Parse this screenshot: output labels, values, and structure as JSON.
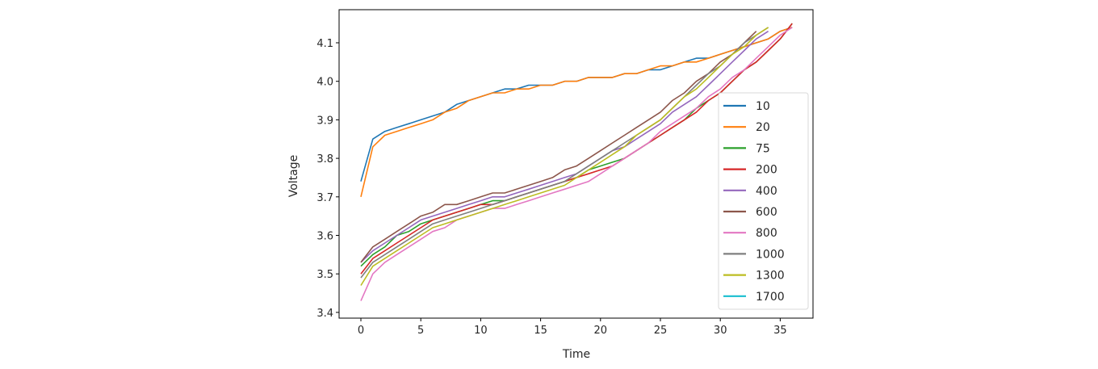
{
  "chart_data": {
    "type": "line",
    "title": "",
    "xlabel": "Time",
    "ylabel": "Voltage",
    "xlim": [
      -1.8,
      37.8
    ],
    "ylim": [
      3.39,
      4.18
    ],
    "xticks": [
      0,
      5,
      10,
      15,
      20,
      25,
      30,
      35
    ],
    "yticks": [
      3.4,
      3.5,
      3.6,
      3.7,
      3.8,
      3.9,
      4.0,
      4.1
    ],
    "ytick_labels": [
      "3.4",
      "3.5",
      "3.6",
      "3.7",
      "3.8",
      "3.9",
      "4.0",
      "4.1"
    ],
    "grid": false,
    "legend_position": "lower right",
    "series": [
      {
        "name": "10",
        "color": "#1f77b4",
        "x": [
          0,
          1,
          2,
          3,
          4,
          5,
          6,
          7,
          8,
          9,
          10,
          11,
          12,
          13,
          14,
          15,
          16,
          17,
          18,
          19,
          20,
          21,
          22,
          23,
          24,
          25,
          26,
          27,
          28,
          29,
          30,
          31,
          32,
          33,
          34,
          35,
          36
        ],
        "values": [
          3.74,
          3.85,
          3.87,
          3.88,
          3.89,
          3.9,
          3.91,
          3.92,
          3.94,
          3.95,
          3.96,
          3.97,
          3.98,
          3.98,
          3.99,
          3.99,
          3.99,
          4.0,
          4.0,
          4.01,
          4.01,
          4.01,
          4.02,
          4.02,
          4.03,
          4.03,
          4.04,
          4.05,
          4.06,
          4.06,
          4.07,
          4.08,
          4.09,
          4.1,
          4.11,
          4.13,
          4.14
        ]
      },
      {
        "name": "20",
        "color": "#ff7f0e",
        "x": [
          0,
          1,
          2,
          3,
          4,
          5,
          6,
          7,
          8,
          9,
          10,
          11,
          12,
          13,
          14,
          15,
          16,
          17,
          18,
          19,
          20,
          21,
          22,
          23,
          24,
          25,
          26,
          27,
          28,
          29,
          30,
          31,
          32,
          33,
          34,
          35,
          36
        ],
        "values": [
          3.7,
          3.83,
          3.86,
          3.87,
          3.88,
          3.89,
          3.9,
          3.92,
          3.93,
          3.95,
          3.96,
          3.97,
          3.97,
          3.98,
          3.98,
          3.99,
          3.99,
          4.0,
          4.0,
          4.01,
          4.01,
          4.01,
          4.02,
          4.02,
          4.03,
          4.04,
          4.04,
          4.05,
          4.05,
          4.06,
          4.07,
          4.08,
          4.09,
          4.1,
          4.11,
          4.13,
          4.14
        ]
      },
      {
        "name": "75",
        "color": "#2ca02c",
        "x": [
          0,
          1,
          2,
          3,
          4,
          5,
          6,
          7,
          8,
          9,
          10,
          11,
          12,
          13,
          14,
          15,
          16,
          17,
          18,
          19,
          20,
          21,
          22,
          23,
          24,
          25,
          26,
          27,
          28,
          29,
          30,
          31,
          32,
          33,
          34,
          35,
          36
        ],
        "values": [
          3.52,
          3.55,
          3.57,
          3.6,
          3.61,
          3.63,
          3.64,
          3.65,
          3.66,
          3.67,
          3.68,
          3.69,
          3.69,
          3.7,
          3.71,
          3.72,
          3.73,
          3.74,
          3.75,
          3.77,
          3.78,
          3.79,
          3.8,
          3.82,
          3.84,
          3.86,
          3.88,
          3.9,
          3.93,
          3.95,
          3.97,
          4.0,
          4.03,
          4.05,
          4.08,
          4.11,
          4.15
        ]
      },
      {
        "name": "200",
        "color": "#d62728",
        "x": [
          0,
          1,
          2,
          3,
          4,
          5,
          6,
          7,
          8,
          9,
          10,
          11,
          12,
          13,
          14,
          15,
          16,
          17,
          18,
          19,
          20,
          21,
          22,
          23,
          24,
          25,
          26,
          27,
          28,
          29,
          30,
          31,
          32,
          33,
          34,
          35,
          36
        ],
        "values": [
          3.5,
          3.54,
          3.56,
          3.58,
          3.6,
          3.62,
          3.64,
          3.65,
          3.66,
          3.67,
          3.68,
          3.68,
          3.69,
          3.7,
          3.71,
          3.72,
          3.73,
          3.74,
          3.75,
          3.76,
          3.77,
          3.78,
          3.8,
          3.82,
          3.84,
          3.86,
          3.88,
          3.9,
          3.92,
          3.95,
          3.97,
          4.0,
          4.03,
          4.05,
          4.08,
          4.11,
          4.15
        ]
      },
      {
        "name": "400",
        "color": "#9467bd",
        "x": [
          0,
          1,
          2,
          3,
          4,
          5,
          6,
          7,
          8,
          9,
          10,
          11,
          12,
          13,
          14,
          15,
          16,
          17,
          18,
          19,
          20,
          21,
          22,
          23,
          24,
          25,
          26,
          27,
          28,
          29,
          30,
          31,
          32,
          33,
          34
        ],
        "values": [
          3.53,
          3.56,
          3.58,
          3.6,
          3.62,
          3.64,
          3.65,
          3.66,
          3.67,
          3.68,
          3.69,
          3.7,
          3.7,
          3.71,
          3.72,
          3.73,
          3.74,
          3.75,
          3.76,
          3.78,
          3.8,
          3.82,
          3.83,
          3.85,
          3.87,
          3.89,
          3.92,
          3.94,
          3.96,
          3.99,
          4.02,
          4.05,
          4.08,
          4.11,
          4.13
        ]
      },
      {
        "name": "600",
        "color": "#8c564b",
        "x": [
          0,
          1,
          2,
          3,
          4,
          5,
          6,
          7,
          8,
          9,
          10,
          11,
          12,
          13,
          14,
          15,
          16,
          17,
          18,
          19,
          20,
          21,
          22,
          23,
          24,
          25,
          26,
          27,
          28,
          29,
          30,
          31,
          32,
          33
        ],
        "values": [
          3.53,
          3.57,
          3.59,
          3.61,
          3.63,
          3.65,
          3.66,
          3.68,
          3.68,
          3.69,
          3.7,
          3.71,
          3.71,
          3.72,
          3.73,
          3.74,
          3.75,
          3.77,
          3.78,
          3.8,
          3.82,
          3.84,
          3.86,
          3.88,
          3.9,
          3.92,
          3.95,
          3.97,
          4.0,
          4.02,
          4.05,
          4.07,
          4.1,
          4.13
        ]
      },
      {
        "name": "800",
        "color": "#e377c2",
        "x": [
          0,
          1,
          2,
          3,
          4,
          5,
          6,
          7,
          8,
          9,
          10,
          11,
          12,
          13,
          14,
          15,
          16,
          17,
          18,
          19,
          20,
          21,
          22,
          23,
          24,
          25,
          26,
          27,
          28,
          29,
          30,
          31,
          32,
          33,
          34,
          35,
          36
        ],
        "values": [
          3.43,
          3.5,
          3.53,
          3.55,
          3.57,
          3.59,
          3.61,
          3.62,
          3.64,
          3.65,
          3.66,
          3.67,
          3.67,
          3.68,
          3.69,
          3.7,
          3.71,
          3.72,
          3.73,
          3.74,
          3.76,
          3.78,
          3.8,
          3.82,
          3.84,
          3.87,
          3.89,
          3.91,
          3.93,
          3.96,
          3.98,
          4.01,
          4.03,
          4.06,
          4.09,
          4.12,
          4.14
        ]
      },
      {
        "name": "1000",
        "color": "#7f7f7f",
        "x": [
          0,
          1,
          2,
          3,
          4,
          5,
          6,
          7,
          8,
          9,
          10,
          11,
          12,
          13,
          14,
          15,
          16,
          17,
          18,
          19,
          20,
          21,
          22,
          23,
          24,
          25,
          26,
          27,
          28,
          29,
          30,
          31,
          32,
          33,
          34
        ],
        "values": [
          3.49,
          3.53,
          3.55,
          3.57,
          3.59,
          3.61,
          3.63,
          3.64,
          3.65,
          3.66,
          3.67,
          3.68,
          3.69,
          3.7,
          3.71,
          3.72,
          3.73,
          3.74,
          3.76,
          3.78,
          3.8,
          3.82,
          3.84,
          3.86,
          3.88,
          3.9,
          3.93,
          3.96,
          3.99,
          4.02,
          4.04,
          4.07,
          4.1,
          4.12,
          4.14
        ]
      },
      {
        "name": "1300",
        "color": "#bcbd22",
        "x": [
          0,
          1,
          2,
          3,
          4,
          5,
          6,
          7,
          8,
          9,
          10,
          11,
          12,
          13,
          14,
          15,
          16,
          17,
          18,
          19,
          20,
          21,
          22,
          23,
          24,
          25,
          26,
          27,
          28,
          29,
          30,
          31,
          32,
          33,
          34
        ],
        "values": [
          3.47,
          3.52,
          3.54,
          3.56,
          3.58,
          3.6,
          3.62,
          3.63,
          3.64,
          3.65,
          3.66,
          3.67,
          3.68,
          3.69,
          3.7,
          3.71,
          3.72,
          3.73,
          3.75,
          3.77,
          3.79,
          3.81,
          3.83,
          3.86,
          3.88,
          3.9,
          3.93,
          3.96,
          3.98,
          4.01,
          4.04,
          4.07,
          4.09,
          4.12,
          4.14
        ]
      },
      {
        "name": "1700",
        "color": "#17becf",
        "x": [],
        "values": []
      }
    ]
  },
  "plot": {
    "xlabel": "Time",
    "ylabel": "Voltage"
  }
}
